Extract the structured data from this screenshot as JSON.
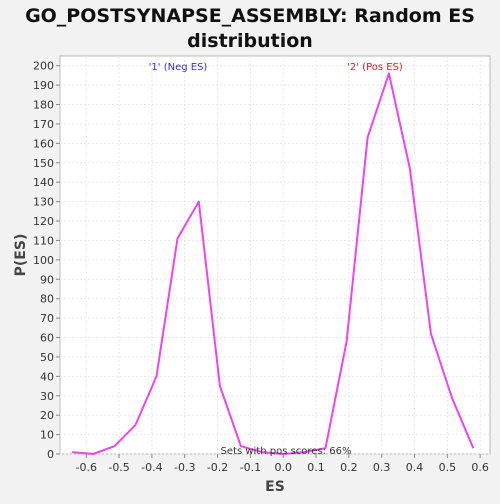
{
  "chart_data": {
    "type": "line",
    "title": "GO_POSTSYNAPSE_ASSEMBLY: Random ES distribution",
    "xlabel": "ES",
    "ylabel": "P(ES)",
    "xlim": [
      -0.68,
      0.63
    ],
    "ylim": [
      0,
      205
    ],
    "xticks": [
      -0.6,
      -0.5,
      -0.4,
      -0.3,
      -0.2,
      -0.1,
      0.0,
      0.1,
      0.2,
      0.3,
      0.4,
      0.5,
      0.6
    ],
    "xtick_labels": [
      "-0.6",
      "-0.5",
      "-0.4",
      "-0.3",
      "-0.2",
      "-0.1",
      "0.0",
      "0.1",
      "0.2",
      "0.3",
      "0.4",
      "0.5",
      "0.6"
    ],
    "yticks": [
      0,
      10,
      20,
      30,
      40,
      50,
      60,
      70,
      80,
      90,
      100,
      110,
      120,
      130,
      140,
      150,
      160,
      170,
      180,
      190,
      200
    ],
    "ytick_labels": [
      "0",
      "10",
      "20",
      "30",
      "40",
      "50",
      "60",
      "70",
      "80",
      "90",
      "100",
      "110",
      "120",
      "130",
      "140",
      "150",
      "160",
      "170",
      "180",
      "190",
      "200"
    ],
    "grid": true,
    "series": [
      {
        "color": "#ee44ee",
        "x": [
          -0.643,
          -0.579,
          -0.514,
          -0.45,
          -0.386,
          -0.322,
          -0.257,
          -0.193,
          -0.129,
          -0.064,
          0.0,
          0.064,
          0.129,
          0.193,
          0.257,
          0.322,
          0.386,
          0.45,
          0.514,
          0.579
        ],
        "y": [
          1,
          0,
          4,
          15,
          40,
          111,
          130,
          35,
          4,
          1,
          0,
          1,
          3,
          58,
          163,
          196,
          147,
          62,
          29,
          3
        ]
      }
    ],
    "annotations": [
      {
        "text": "'1' (Neg ES)",
        "color": "#3333cc"
      },
      {
        "text": "'2' (Pos ES)",
        "color": "#cc2222"
      },
      {
        "text": "Sets with pos scores: 66%",
        "color": "#333333"
      }
    ]
  }
}
